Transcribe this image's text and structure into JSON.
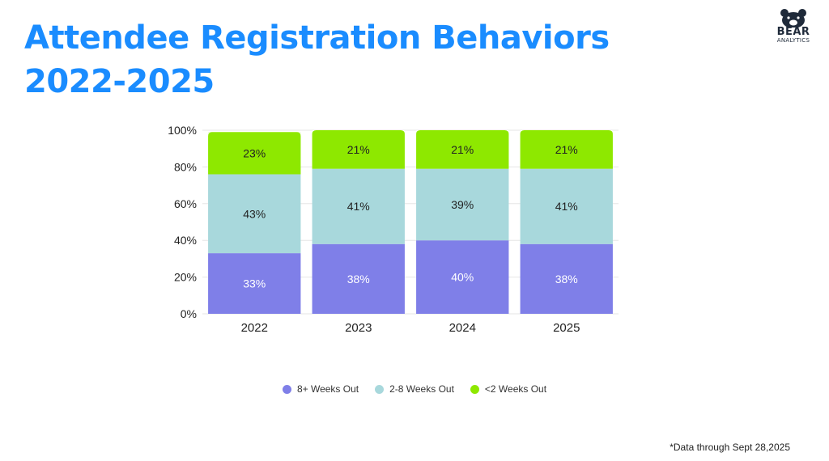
{
  "header": {
    "title_line1": "Attendee Registration Behaviors",
    "title_line2": "2022-2025"
  },
  "logo": {
    "brand": "BEAR",
    "sub": "ANALYTICS"
  },
  "footnote": "*Data through Sept 28,2025",
  "colors": {
    "title": "#1a8cff",
    "s1": "#7f7fe8",
    "s2": "#a8d8dc",
    "s3": "#8ee800"
  },
  "chart_data": {
    "type": "bar",
    "stacked": true,
    "categories": [
      "2022",
      "2023",
      "2024",
      "2025"
    ],
    "series": [
      {
        "name": "8+ Weeks Out",
        "values": [
          33,
          38,
          40,
          38
        ],
        "labels": [
          "33%",
          "38%",
          "40%",
          "38%"
        ],
        "color": "#7f7fe8",
        "label_color": "#ffffff"
      },
      {
        "name": "2-8 Weeks Out",
        "values": [
          43,
          41,
          39,
          41
        ],
        "labels": [
          "43%",
          "41%",
          "39%",
          "41%"
        ],
        "color": "#a8d8dc",
        "label_color": "#222222"
      },
      {
        "name": "<2 Weeks Out",
        "values": [
          23,
          21,
          21,
          21
        ],
        "labels": [
          "23%",
          "21%",
          "21%",
          "21%"
        ],
        "color": "#8ee800",
        "label_color": "#222222"
      }
    ],
    "y_ticks": [
      "0%",
      "20%",
      "40%",
      "60%",
      "80%",
      "100%"
    ],
    "ylim": [
      0,
      100
    ],
    "grid": true,
    "legend_position": "bottom"
  }
}
